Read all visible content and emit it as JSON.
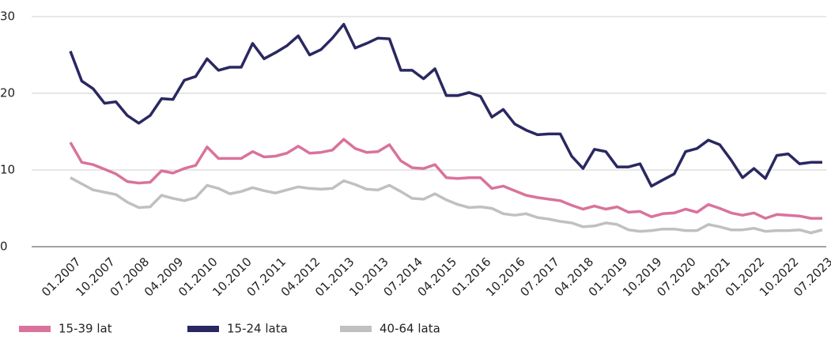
{
  "chart_data": {
    "type": "line",
    "categories": [
      "01.2007",
      null,
      null,
      "10.2007",
      null,
      null,
      "07.2008",
      null,
      null,
      "04.2009",
      null,
      null,
      "01.2010",
      null,
      null,
      "10.2010",
      null,
      null,
      "07.2011",
      null,
      null,
      "04.2012",
      null,
      null,
      "01.2013",
      null,
      null,
      "10.2013",
      null,
      null,
      "07.2014",
      null,
      null,
      "04.2015",
      null,
      null,
      "01.2016",
      null,
      null,
      "10.2016",
      null,
      null,
      "07.2017",
      null,
      null,
      "04.2018",
      null,
      null,
      "01.2019",
      null,
      null,
      "10.2019",
      null,
      null,
      "07.2020",
      null,
      null,
      "04.2021",
      null,
      null,
      "01.2022",
      null,
      null,
      "10.2022",
      null,
      null,
      "07.2023"
    ],
    "series": [
      {
        "name": "15-39 lat",
        "color": "#d9739b",
        "values": [
          13.6,
          11.0,
          10.7,
          10.1,
          9.5,
          8.5,
          8.3,
          8.4,
          9.9,
          9.6,
          10.2,
          10.6,
          13.0,
          11.5,
          11.5,
          11.5,
          12.4,
          11.7,
          11.8,
          12.2,
          13.1,
          12.2,
          12.3,
          12.6,
          14.0,
          12.8,
          12.3,
          12.4,
          13.3,
          11.2,
          10.3,
          10.2,
          10.7,
          9.0,
          8.9,
          9.0,
          9.0,
          7.6,
          7.9,
          7.3,
          6.7,
          6.4,
          6.2,
          6.0,
          5.4,
          4.9,
          5.3,
          4.9,
          5.2,
          4.5,
          4.6,
          3.9,
          4.3,
          4.4,
          4.9,
          4.5,
          5.5,
          5.0,
          4.4,
          4.1,
          4.4,
          3.7,
          4.2,
          4.1,
          4.0,
          3.7,
          3.7
        ]
      },
      {
        "name": "15-24 lata",
        "color": "#2a2860",
        "values": [
          25.5,
          21.6,
          20.6,
          18.7,
          18.9,
          17.1,
          16.1,
          17.1,
          19.3,
          19.2,
          21.7,
          22.2,
          24.5,
          23.0,
          23.4,
          23.4,
          26.5,
          24.5,
          25.3,
          26.2,
          27.5,
          25.0,
          25.7,
          27.2,
          29.0,
          25.9,
          26.5,
          27.2,
          27.1,
          23.0,
          23.0,
          21.9,
          23.2,
          19.7,
          19.7,
          20.1,
          19.6,
          16.9,
          17.9,
          16.0,
          15.2,
          14.6,
          14.7,
          14.7,
          11.8,
          10.2,
          12.7,
          12.4,
          10.4,
          10.4,
          10.8,
          7.9,
          8.7,
          9.5,
          12.4,
          12.8,
          13.9,
          13.3,
          11.3,
          9.0,
          10.2,
          8.9,
          11.9,
          12.1,
          10.8,
          11.0,
          11.0
        ]
      },
      {
        "name": "40-64 lata",
        "color": "#c0c0c0",
        "values": [
          9.0,
          8.2,
          7.4,
          7.1,
          6.8,
          5.8,
          5.1,
          5.2,
          6.7,
          6.3,
          6.0,
          6.4,
          8.0,
          7.6,
          6.9,
          7.2,
          7.7,
          7.3,
          7.0,
          7.4,
          7.8,
          7.6,
          7.5,
          7.6,
          8.6,
          8.1,
          7.5,
          7.4,
          8.0,
          7.2,
          6.3,
          6.2,
          6.9,
          6.1,
          5.5,
          5.1,
          5.2,
          5.0,
          4.3,
          4.1,
          4.3,
          3.8,
          3.6,
          3.3,
          3.1,
          2.6,
          2.7,
          3.1,
          2.9,
          2.2,
          2.0,
          2.1,
          2.3,
          2.3,
          2.1,
          2.1,
          2.9,
          2.6,
          2.2,
          2.2,
          2.4,
          2.0,
          2.1,
          2.1,
          2.2,
          1.8,
          2.2
        ]
      }
    ],
    "ylim": [
      0,
      30
    ],
    "yticks": [
      0,
      10,
      20,
      30
    ],
    "grid": true,
    "legend": "bottom"
  }
}
